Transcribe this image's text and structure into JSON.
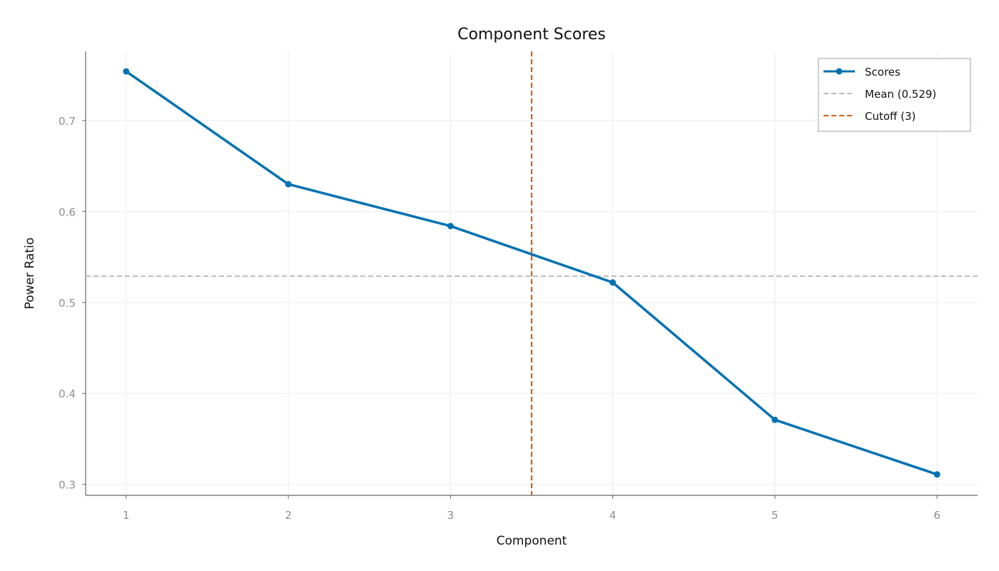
{
  "chart_data": {
    "type": "line",
    "title": "Component Scores",
    "xlabel": "Component",
    "ylabel": "Power Ratio",
    "x": [
      1,
      2,
      3,
      4,
      5,
      6
    ],
    "series": [
      {
        "name": "Scores",
        "values": [
          0.754,
          0.63,
          0.584,
          0.522,
          0.371,
          0.311
        ],
        "color": "#0072B2"
      }
    ],
    "reference_lines": [
      {
        "name": "Mean (0.529)",
        "orientation": "horizontal",
        "value": 0.529,
        "style": "dashed",
        "color": "#BBBBBB"
      },
      {
        "name": "Cutoff (3)",
        "orientation": "vertical",
        "value": 3.5,
        "style": "dashed",
        "color": "#D55E00"
      }
    ],
    "xlim": [
      0.75,
      6.25
    ],
    "ylim": [
      0.288,
      0.776
    ],
    "xticks": [
      1,
      2,
      3,
      4,
      5,
      6
    ],
    "xtick_labels": [
      "1",
      "2",
      "3",
      "4",
      "5",
      "6"
    ],
    "yticks": [
      0.3,
      0.4,
      0.5,
      0.6,
      0.7
    ],
    "ytick_labels": [
      "0.3",
      "0.4",
      "0.5",
      "0.6",
      "0.7"
    ],
    "grid": true,
    "legend_position": "top-right",
    "legend": [
      "Scores",
      "Mean (0.529)",
      "Cutoff (3)"
    ]
  }
}
